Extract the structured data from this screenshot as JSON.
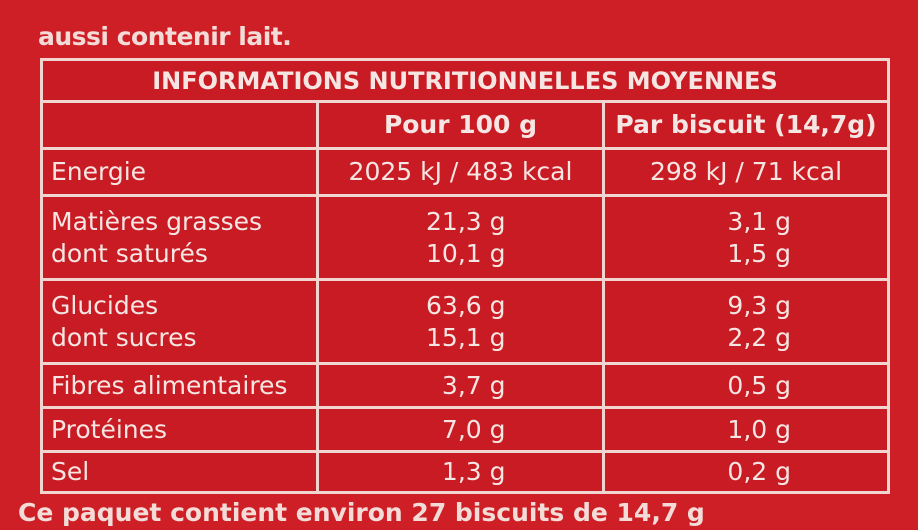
{
  "top_text": "aussi contenir lait.",
  "table": {
    "title": "INFORMATIONS NUTRITIONNELLES MOYENNES",
    "col_per100": "Pour 100 g",
    "col_perbiscuit": "Par biscuit (14,7g)",
    "rows": [
      {
        "label": [
          "Energie"
        ],
        "per100": [
          "2025 kJ / 483 kcal"
        ],
        "perbiscuit": [
          "298 kJ / 71 kcal"
        ]
      },
      {
        "label": [
          "Matières grasses",
          "dont saturés"
        ],
        "per100": [
          "21,3 g",
          "10,1 g"
        ],
        "perbiscuit": [
          "3,1 g",
          "1,5 g"
        ]
      },
      {
        "label": [
          "Glucides",
          "dont sucres"
        ],
        "per100": [
          "63,6 g",
          "15,1 g"
        ],
        "perbiscuit": [
          "9,3 g",
          "2,2 g"
        ]
      },
      {
        "label": [
          "Fibres alimentaires"
        ],
        "per100": [
          "3,7 g"
        ],
        "perbiscuit": [
          "0,5 g"
        ]
      },
      {
        "label": [
          "Protéines"
        ],
        "per100": [
          "7,0 g"
        ],
        "perbiscuit": [
          "1,0 g"
        ]
      },
      {
        "label": [
          "Sel"
        ],
        "per100": [
          "1,3 g"
        ],
        "perbiscuit": [
          "0,2 g"
        ]
      }
    ]
  },
  "bottom_text": "Ce paquet contient environ 27 biscuits de 14,7 g"
}
